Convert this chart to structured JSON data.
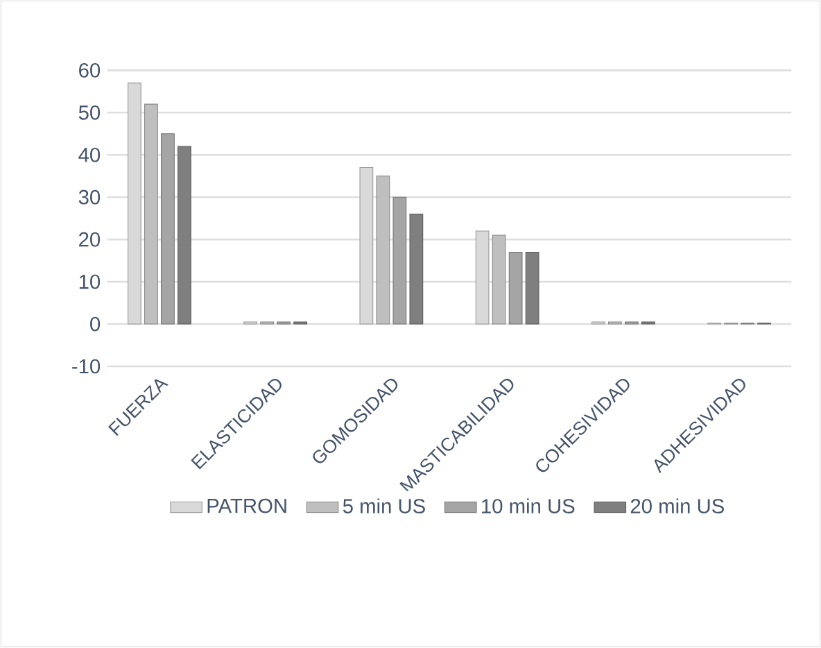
{
  "chart_data": {
    "type": "bar",
    "categories": [
      "FUERZA",
      "ELASTICIDAD",
      "GOMOSIDAD",
      "MASTICABILIDAD",
      "COHESIVIDAD",
      "ADHESIVIDAD"
    ],
    "series": [
      {
        "name": "PATRON",
        "color": "#d9d9d9",
        "values": [
          57,
          0.5,
          37,
          22,
          0.5,
          0.2
        ]
      },
      {
        "name": "5  min US",
        "color": "#bfbfbf",
        "values": [
          52,
          0.5,
          35,
          21,
          0.5,
          0.2
        ]
      },
      {
        "name": "10  min US",
        "color": "#a5a5a5",
        "values": [
          45,
          0.5,
          30,
          17,
          0.5,
          0.2
        ]
      },
      {
        "name": "20   min US",
        "color": "#7f7f7f",
        "values": [
          42,
          0.5,
          26,
          17,
          0.5,
          0.2
        ]
      }
    ],
    "ylim": [
      -10,
      60
    ],
    "yticks": [
      -10,
      0,
      10,
      20,
      30,
      40,
      50,
      60
    ],
    "grid": "y",
    "legend": "bottom"
  }
}
